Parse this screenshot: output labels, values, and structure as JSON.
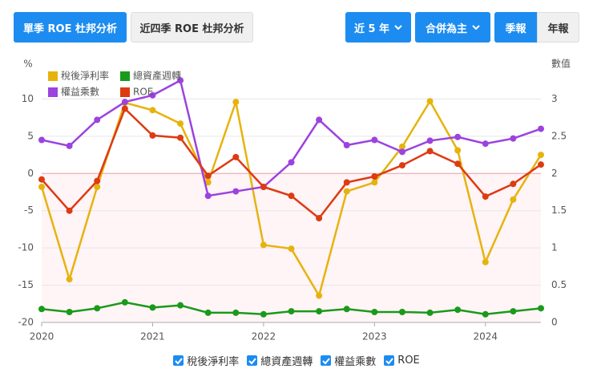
{
  "toolbar": {
    "tabs": [
      "單季 ROE 杜邦分析",
      "近四季 ROE 杜邦分析"
    ],
    "period": "近 5 年",
    "scope": "合併為主",
    "report_types": [
      "季報",
      "年報"
    ]
  },
  "chart_data": {
    "type": "line",
    "y_label": "%",
    "y2_label": "數值",
    "x": [
      2020,
      2020.25,
      2020.5,
      2020.75,
      2021,
      2021.25,
      2021.5,
      2021.75,
      2022,
      2022.25,
      2022.5,
      2022.75,
      2023,
      2023.25,
      2023.5,
      2023.75,
      2024,
      2024.25,
      2024.5
    ],
    "xlim": [
      2020,
      2024.5
    ],
    "xticks": [
      2020,
      2021,
      2022,
      2023,
      2024
    ],
    "ylim": [
      -20,
      15
    ],
    "yticks": [
      -20,
      -15,
      -10,
      -5,
      0,
      5,
      10
    ],
    "y2lim": [
      0,
      3.5
    ],
    "y2ticks": [
      0,
      0.5,
      1,
      1.5,
      2,
      2.5,
      3
    ],
    "grid": true,
    "legend": "upper left",
    "series": [
      {
        "name": "稅後淨利率",
        "color": "#e6b30e",
        "values": [
          -1.8,
          -14.2,
          -1.8,
          9.5,
          8.5,
          6.7,
          -1.2,
          9.6,
          -9.6,
          -10.1,
          -16.4,
          -2.4,
          -1.2,
          3.6,
          9.7,
          3.1,
          -11.9,
          -3.5,
          2.5
        ]
      },
      {
        "name": "總資產週轉",
        "color": "#1a9a1a",
        "axis": "y2",
        "values": [
          0.18,
          0.14,
          0.19,
          0.27,
          0.2,
          0.23,
          0.13,
          0.13,
          0.11,
          0.15,
          0.15,
          0.18,
          0.14,
          0.14,
          0.13,
          0.17,
          0.11,
          0.15,
          0.19
        ]
      },
      {
        "name": "權益乘數",
        "color": "#9b42e0",
        "axis": "y2",
        "values": [
          2.45,
          2.37,
          2.72,
          2.96,
          3.05,
          3.25,
          1.7,
          1.76,
          1.82,
          2.15,
          2.72,
          2.38,
          2.45,
          2.29,
          2.44,
          2.49,
          2.4,
          2.47,
          2.6
        ]
      },
      {
        "name": "ROE",
        "color": "#dd3b12",
        "values": [
          -0.8,
          -5.0,
          -1.0,
          8.7,
          5.1,
          4.8,
          -0.3,
          2.2,
          -1.8,
          -3.0,
          -6.0,
          -1.2,
          -0.4,
          1.1,
          3.0,
          1.3,
          -3.1,
          -1.4,
          1.2
        ]
      }
    ]
  }
}
